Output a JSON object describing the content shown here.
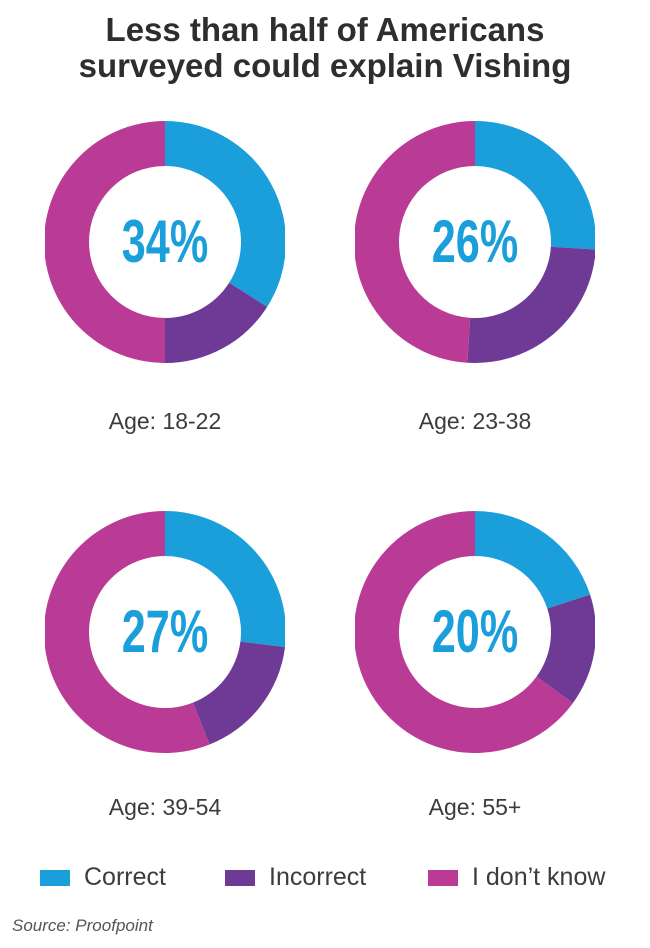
{
  "title_lines": [
    "Less than half of Americans",
    "surveyed could explain Vishing"
  ],
  "source": "Source: Proofpoint",
  "legend": [
    {
      "label": "Correct",
      "color": "#1a9fdb"
    },
    {
      "label": "Incorrect",
      "color": "#6f3a96"
    },
    {
      "label": "I don’t know",
      "color": "#b93b96"
    }
  ],
  "chart_data": [
    {
      "type": "pie",
      "title": "Age: 18-22",
      "center_label": "34%",
      "categories": [
        "Correct",
        "Incorrect",
        "I don’t know"
      ],
      "values": [
        34,
        16,
        50
      ],
      "colors": [
        "#1a9fdb",
        "#6f3a96",
        "#b93b96"
      ]
    },
    {
      "type": "pie",
      "title": "Age: 23-38",
      "center_label": "26%",
      "categories": [
        "Correct",
        "Incorrect",
        "I don’t know"
      ],
      "values": [
        26,
        25,
        49
      ],
      "colors": [
        "#1a9fdb",
        "#6f3a96",
        "#b93b96"
      ]
    },
    {
      "type": "pie",
      "title": "Age: 39-54",
      "center_label": "27%",
      "categories": [
        "Correct",
        "Incorrect",
        "I don’t know"
      ],
      "values": [
        27,
        17,
        56
      ],
      "colors": [
        "#1a9fdb",
        "#6f3a96",
        "#b93b96"
      ]
    },
    {
      "type": "pie",
      "title": "Age: 55+",
      "center_label": "20%",
      "categories": [
        "Correct",
        "Incorrect",
        "I don’t know"
      ],
      "values": [
        20,
        15,
        65
      ],
      "colors": [
        "#1a9fdb",
        "#6f3a96",
        "#b93b96"
      ]
    }
  ]
}
